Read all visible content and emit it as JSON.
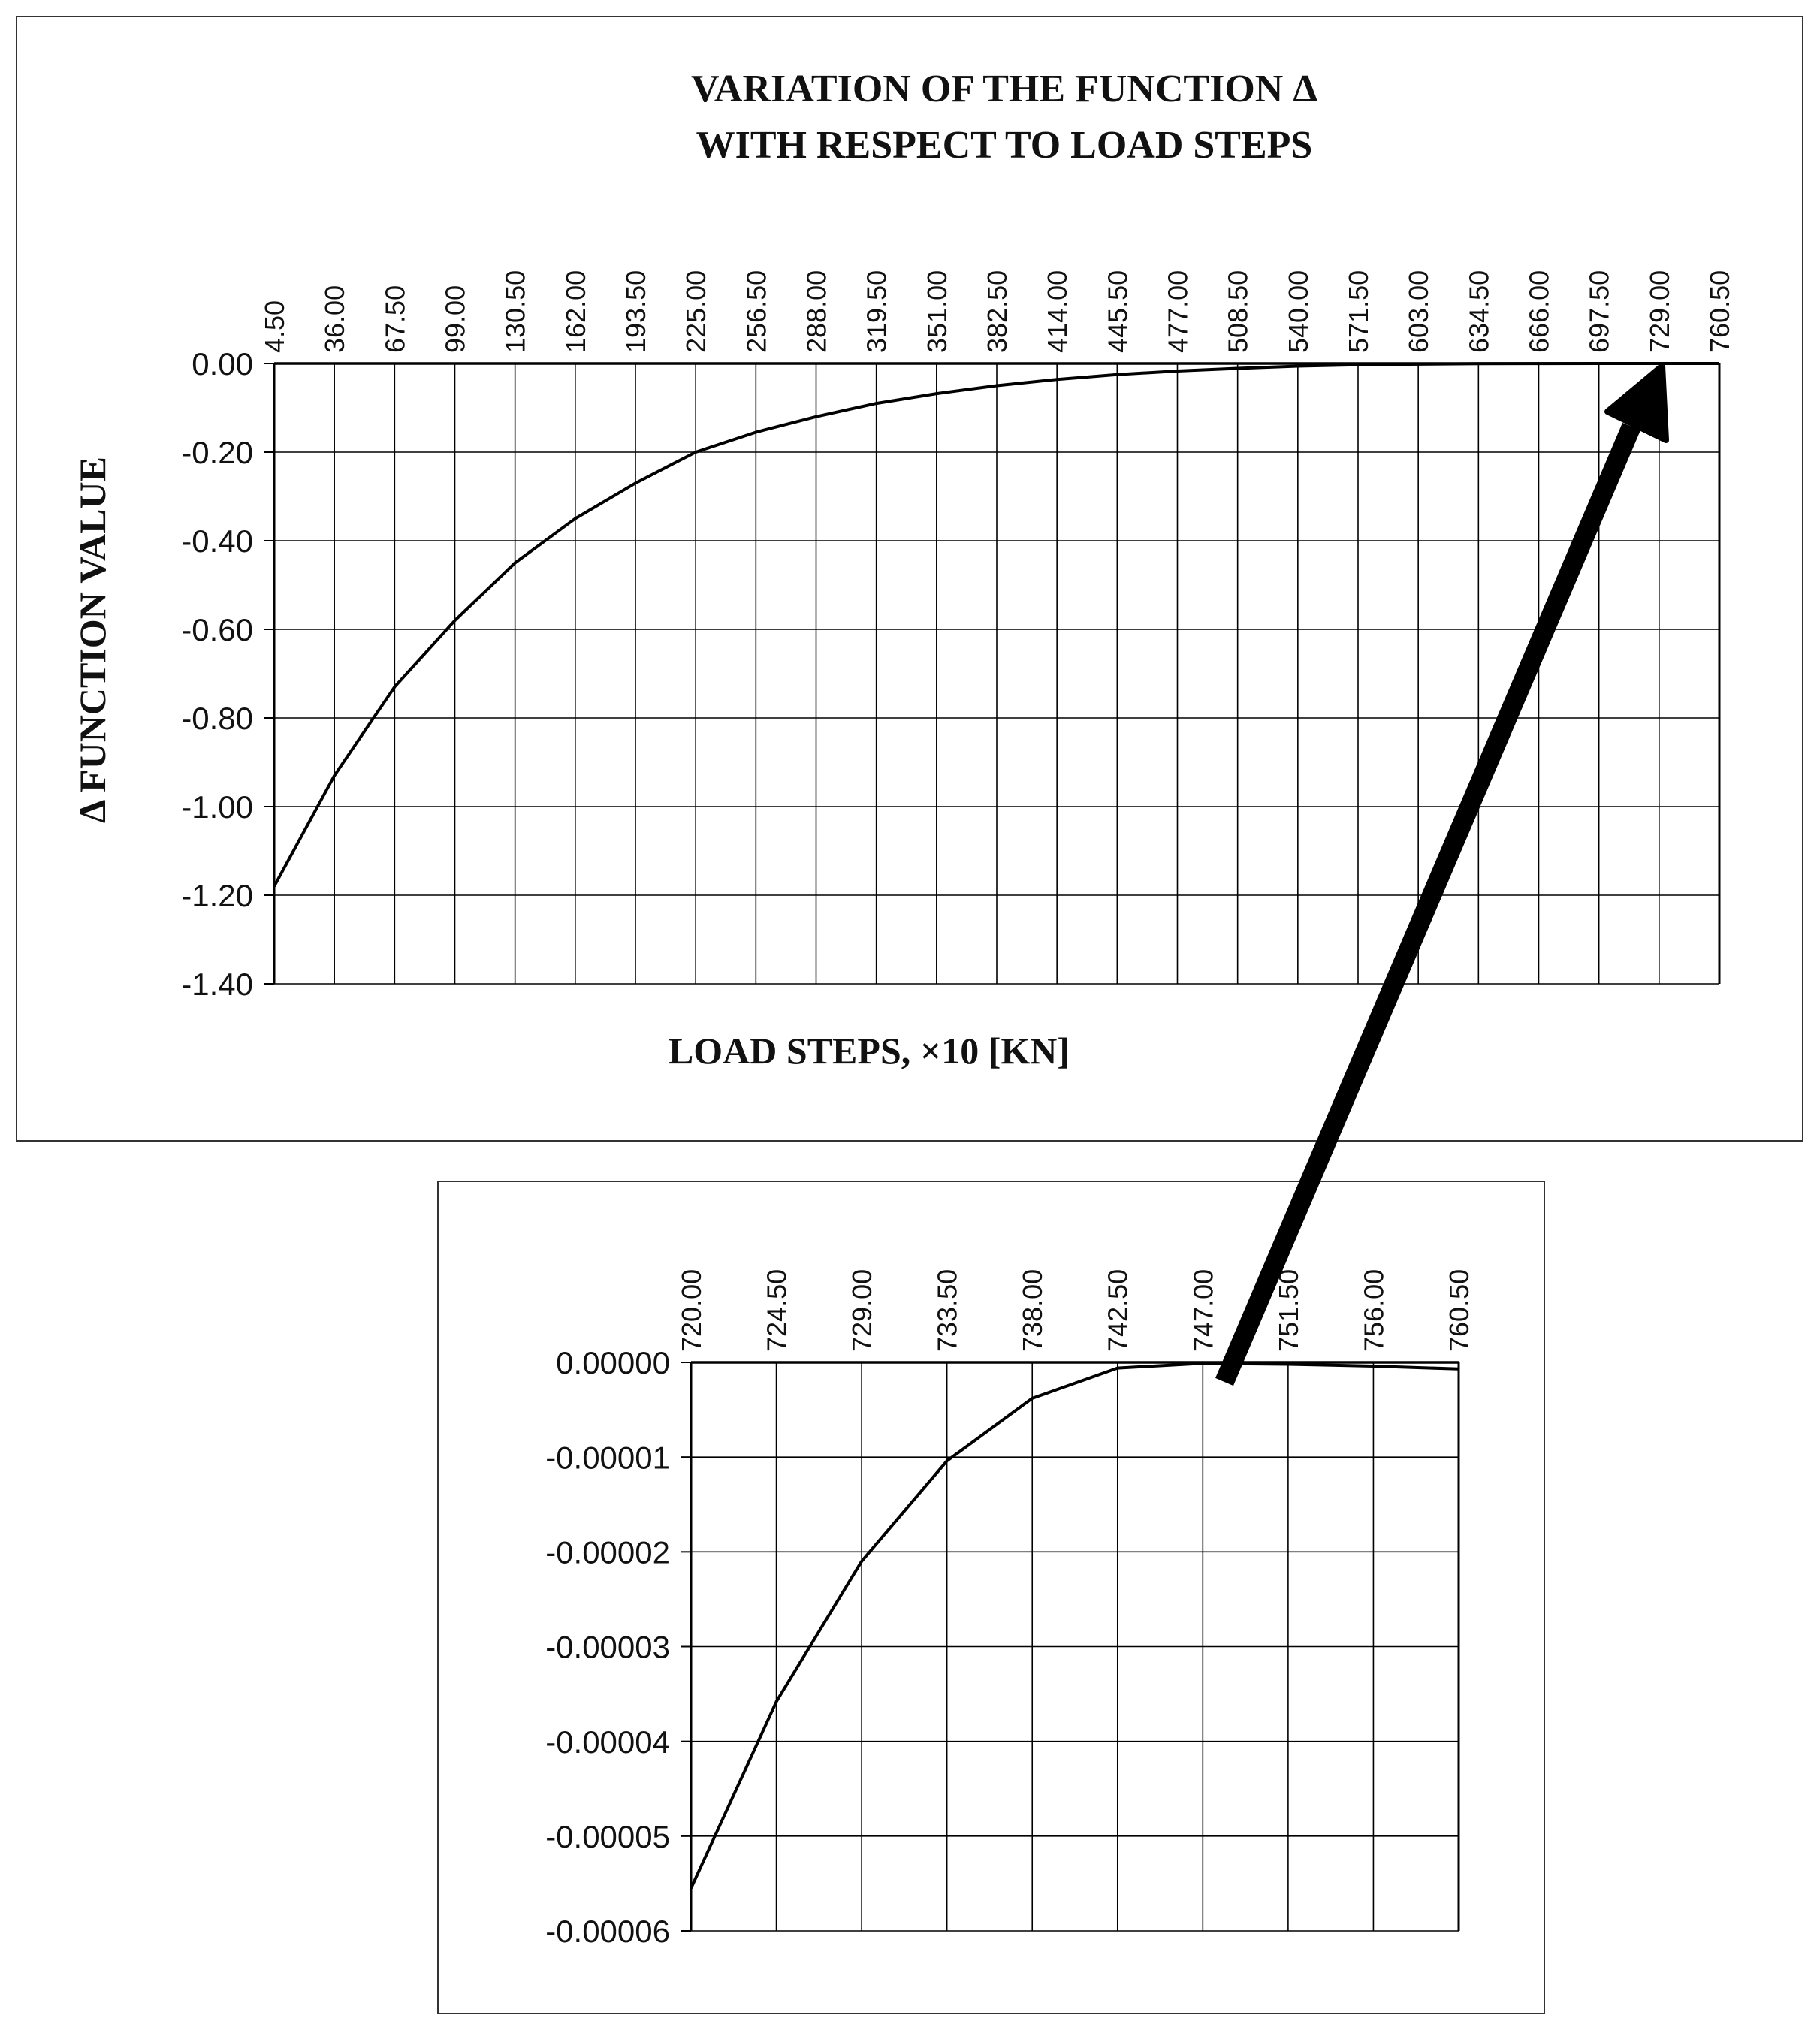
{
  "chart_data": [
    {
      "type": "line",
      "title": "VARIATION OF THE FUNCTION Δ",
      "subtitle": "WITH RESPECT TO LOAD STEPS",
      "xlabel": "LOAD STEPS, ×10 [KN]",
      "ylabel": "Δ FUNCTION VALUE",
      "x_axis_position": "top",
      "grid": true,
      "ylim": [
        -1.4,
        0.0
      ],
      "ytick_labels": [
        "0.00",
        "-0.20",
        "-0.40",
        "-0.60",
        "-0.80",
        "-1.00",
        "-1.20",
        "-1.40"
      ],
      "categories": [
        "4.50",
        "36.00",
        "67.50",
        "99.00",
        "130.50",
        "162.00",
        "193.50",
        "225.00",
        "256.50",
        "288.00",
        "319.50",
        "351.00",
        "382.50",
        "414.00",
        "445.50",
        "477.00",
        "508.50",
        "540.00",
        "571.50",
        "603.00",
        "634.50",
        "666.00",
        "697.50",
        "729.00",
        "760.50"
      ],
      "series": [
        {
          "values": [
            -1.18,
            -0.93,
            -0.73,
            -0.58,
            -0.45,
            -0.35,
            -0.27,
            -0.2,
            -0.155,
            -0.12,
            -0.09,
            -0.068,
            -0.05,
            -0.036,
            -0.025,
            -0.017,
            -0.011,
            -0.006,
            -0.003,
            -0.0015,
            -0.0005,
            -0.0001,
            0.0,
            0.0,
            0.0
          ]
        }
      ]
    },
    {
      "type": "line",
      "x_axis_position": "top",
      "grid": true,
      "ylim": [
        -6e-05,
        0.0
      ],
      "ytick_labels": [
        "0.00000",
        "-0.00001",
        "-0.00002",
        "-0.00003",
        "-0.00004",
        "-0.00005",
        "-0.00006"
      ],
      "categories": [
        "720.00",
        "724.50",
        "729.00",
        "733.50",
        "738.00",
        "742.50",
        "747.00",
        "751.50",
        "756.00",
        "760.50"
      ],
      "series": [
        {
          "values": [
            -5.55e-05,
            -3.58e-05,
            -2.1e-05,
            -1.04e-05,
            -3.8e-06,
            -6e-07,
            -1e-07,
            -2e-07,
            -4e-07,
            -7e-07
          ]
        }
      ]
    }
  ]
}
